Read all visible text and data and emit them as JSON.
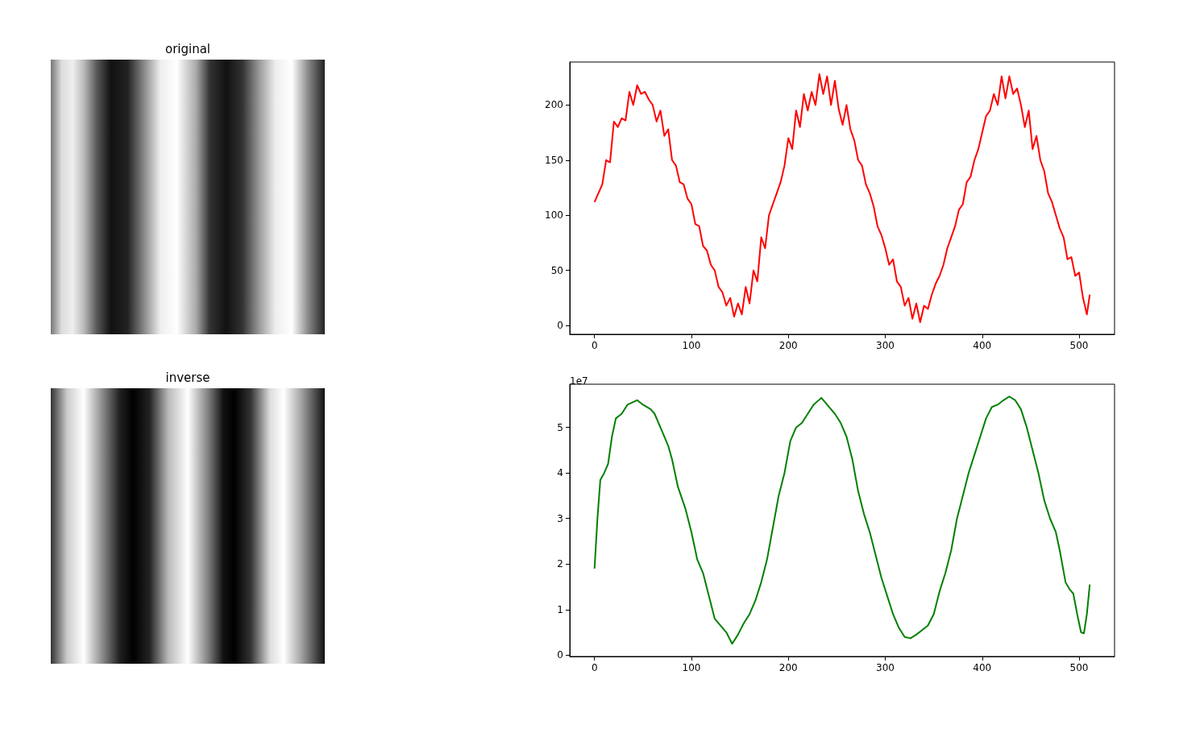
{
  "chart_data": [
    {
      "type": "other",
      "title": "original"
    },
    {
      "type": "line",
      "color": "#ff0000",
      "marker": "none",
      "grid": false,
      "xlim": [
        -25.55,
        536.55
      ],
      "xticks": [
        0,
        100,
        200,
        300,
        400,
        500
      ],
      "ylim": [
        -8,
        239
      ],
      "yticks": [
        0,
        50,
        100,
        150,
        200
      ],
      "x": [
        0,
        4,
        8,
        12,
        16,
        20,
        24,
        28,
        32,
        36,
        40,
        44,
        48,
        52,
        56,
        60,
        64,
        68,
        72,
        76,
        80,
        84,
        88,
        92,
        96,
        100,
        104,
        108,
        112,
        116,
        120,
        124,
        128,
        132,
        136,
        140,
        144,
        148,
        152,
        156,
        160,
        164,
        168,
        172,
        176,
        180,
        184,
        188,
        192,
        196,
        200,
        204,
        208,
        212,
        216,
        220,
        224,
        228,
        232,
        236,
        240,
        244,
        248,
        252,
        256,
        260,
        264,
        268,
        272,
        276,
        280,
        284,
        288,
        292,
        296,
        300,
        304,
        308,
        312,
        316,
        320,
        324,
        328,
        332,
        336,
        340,
        344,
        348,
        352,
        356,
        360,
        364,
        368,
        372,
        376,
        380,
        384,
        388,
        392,
        396,
        400,
        404,
        408,
        412,
        416,
        420,
        424,
        428,
        432,
        436,
        440,
        444,
        448,
        452,
        456,
        460,
        464,
        468,
        472,
        476,
        480,
        484,
        488,
        492,
        496,
        500,
        504,
        508,
        511
      ],
      "values": [
        112,
        120,
        128,
        150,
        148,
        185,
        180,
        188,
        186,
        212,
        200,
        218,
        210,
        212,
        205,
        200,
        185,
        195,
        172,
        178,
        150,
        145,
        130,
        128,
        115,
        110,
        92,
        90,
        72,
        68,
        55,
        50,
        35,
        30,
        18,
        25,
        8,
        20,
        10,
        35,
        20,
        50,
        40,
        80,
        70,
        100,
        110,
        120,
        130,
        145,
        170,
        160,
        195,
        180,
        210,
        195,
        212,
        200,
        228,
        210,
        226,
        200,
        222,
        196,
        182,
        200,
        178,
        168,
        150,
        145,
        128,
        120,
        108,
        90,
        82,
        70,
        55,
        60,
        40,
        35,
        18,
        25,
        6,
        20,
        3,
        18,
        15,
        28,
        38,
        45,
        55,
        70,
        80,
        90,
        105,
        110,
        130,
        135,
        150,
        160,
        175,
        190,
        195,
        210,
        200,
        226,
        206,
        226,
        210,
        215,
        200,
        180,
        195,
        160,
        172,
        150,
        140,
        120,
        112,
        100,
        88,
        80,
        60,
        62,
        45,
        48,
        25,
        10,
        28
      ]
    },
    {
      "type": "other",
      "title": "inverse"
    },
    {
      "type": "line",
      "color": "#008000",
      "marker": "none",
      "grid": false,
      "xlim": [
        -25.55,
        536.55
      ],
      "xticks": [
        0,
        100,
        200,
        300,
        400,
        500
      ],
      "ylim": [
        -0.03,
        5.95
      ],
      "yticks": [
        0,
        1,
        2,
        3,
        4,
        5
      ],
      "annotations": [
        "1e7"
      ],
      "x": [
        0,
        3,
        6,
        10,
        14,
        18,
        22,
        28,
        34,
        44,
        50,
        58,
        62,
        68,
        76,
        80,
        86,
        94,
        100,
        106,
        112,
        118,
        124,
        130,
        136,
        142,
        148,
        154,
        160,
        166,
        172,
        178,
        184,
        190,
        196,
        202,
        208,
        214,
        220,
        226,
        234,
        240,
        248,
        254,
        260,
        266,
        272,
        278,
        284,
        290,
        296,
        302,
        308,
        314,
        320,
        326,
        332,
        338,
        344,
        350,
        356,
        362,
        368,
        374,
        380,
        386,
        392,
        398,
        404,
        410,
        416,
        422,
        428,
        434,
        440,
        446,
        452,
        458,
        464,
        470,
        476,
        480,
        486,
        490,
        494,
        498,
        502,
        505,
        508,
        511
      ],
      "values": [
        1.9,
        3.0,
        3.85,
        4.0,
        4.2,
        4.8,
        5.2,
        5.3,
        5.5,
        5.6,
        5.5,
        5.4,
        5.3,
        5.0,
        4.6,
        4.3,
        3.7,
        3.2,
        2.7,
        2.1,
        1.8,
        1.3,
        0.8,
        0.65,
        0.5,
        0.25,
        0.45,
        0.7,
        0.9,
        1.2,
        1.6,
        2.1,
        2.8,
        3.5,
        4.0,
        4.7,
        5.0,
        5.1,
        5.3,
        5.5,
        5.65,
        5.5,
        5.3,
        5.1,
        4.8,
        4.3,
        3.6,
        3.1,
        2.7,
        2.2,
        1.7,
        1.3,
        0.9,
        0.6,
        0.4,
        0.37,
        0.45,
        0.55,
        0.65,
        0.9,
        1.4,
        1.8,
        2.3,
        3.0,
        3.5,
        4.0,
        4.4,
        4.8,
        5.2,
        5.45,
        5.5,
        5.6,
        5.68,
        5.6,
        5.4,
        5.0,
        4.5,
        4.0,
        3.4,
        3.0,
        2.7,
        2.3,
        1.6,
        1.45,
        1.35,
        0.9,
        0.5,
        0.48,
        0.9,
        1.55
      ]
    }
  ]
}
